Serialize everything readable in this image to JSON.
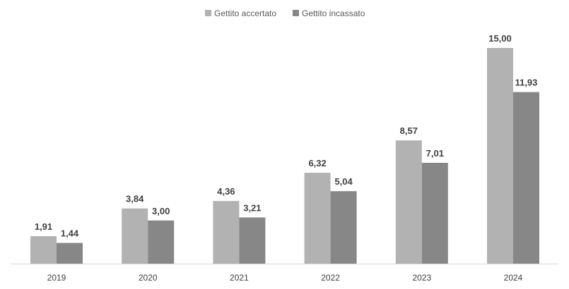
{
  "chart_data": {
    "type": "bar",
    "categories": [
      "2019",
      "2020",
      "2021",
      "2022",
      "2023",
      "2024"
    ],
    "series": [
      {
        "name": "Gettito accertato",
        "values": [
          1.91,
          3.84,
          4.36,
          6.32,
          8.57,
          15.0
        ],
        "labels": [
          "1,91",
          "3,84",
          "4,36",
          "6,32",
          "8,57",
          "15,00"
        ],
        "color": "#b2b2b2"
      },
      {
        "name": "Gettito incassato",
        "values": [
          1.44,
          3.0,
          3.21,
          5.04,
          7.01,
          11.93
        ],
        "labels": [
          "1,44",
          "3,00",
          "3,21",
          "5,04",
          "7,01",
          "11,93"
        ],
        "color": "#878787"
      }
    ],
    "title": "",
    "xlabel": "",
    "ylabel": "",
    "ylim": [
      0,
      15.5
    ],
    "grid": false,
    "legend_position": "top-center"
  }
}
